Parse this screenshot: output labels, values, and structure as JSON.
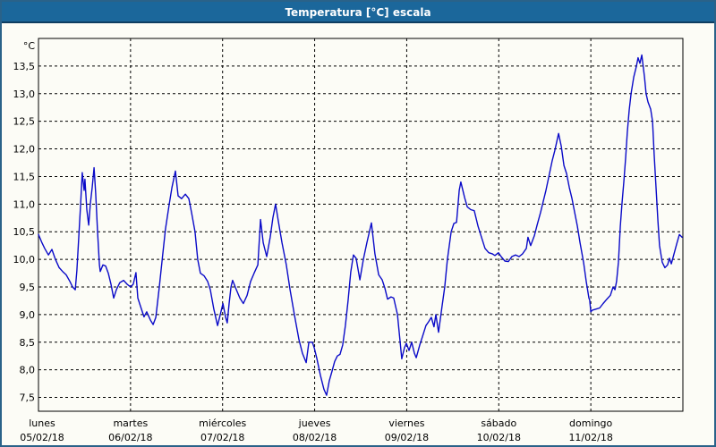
{
  "window": {
    "title": "Temperatura [°C] escala"
  },
  "colors": {
    "titlebar_bg": "#1b679b",
    "titlebar_text": "#ffffff",
    "titlebar_border": "#0e3d60",
    "frame_border": "#2a6289",
    "background": "#fcfcf6",
    "line": "#0a0ac8",
    "axis": "#000000",
    "grid": "#000000",
    "label_text": "#000000"
  },
  "chart_data": {
    "type": "line",
    "title": "Temperatura [°C] escala",
    "y_unit_label": "°C",
    "ylabel": "Temperatura [°C]",
    "xlabel": "",
    "grid": "dashed",
    "legend": "none",
    "ylim": [
      7.25,
      14.0
    ],
    "xlim_hours": [
      0,
      168
    ],
    "y_ticks": [
      {
        "label": "13,5",
        "value": 13.5
      },
      {
        "label": "13,0",
        "value": 13.0
      },
      {
        "label": "12,5",
        "value": 12.5
      },
      {
        "label": "12,0",
        "value": 12.0
      },
      {
        "label": "11,5",
        "value": 11.5
      },
      {
        "label": "11,0",
        "value": 11.0
      },
      {
        "label": "10,5",
        "value": 10.5
      },
      {
        "label": "10,0",
        "value": 10.0
      },
      {
        "label": "9,5",
        "value": 9.5
      },
      {
        "label": "9,0",
        "value": 9.0
      },
      {
        "label": "8,5",
        "value": 8.5
      },
      {
        "label": "8,0",
        "value": 8.0
      },
      {
        "label": "7,5",
        "value": 7.5
      }
    ],
    "days": [
      {
        "name": "lunes",
        "date": "05/02/18"
      },
      {
        "name": "martes",
        "date": "06/02/18"
      },
      {
        "name": "miércoles",
        "date": "07/02/18"
      },
      {
        "name": "jueves",
        "date": "08/02/18"
      },
      {
        "name": "viernes",
        "date": "09/02/18"
      },
      {
        "name": "sábado",
        "date": "10/02/18"
      },
      {
        "name": "domingo",
        "date": "11/02/18"
      }
    ],
    "series": [
      {
        "name": "Temperatura",
        "color": "#0a0ac8",
        "points": [
          [
            0,
            10.45
          ],
          [
            0.9,
            10.3
          ],
          [
            1.6,
            10.2
          ],
          [
            2.6,
            10.08
          ],
          [
            3.5,
            10.18
          ],
          [
            4.4,
            10.0
          ],
          [
            5.4,
            9.85
          ],
          [
            6.3,
            9.78
          ],
          [
            7.2,
            9.72
          ],
          [
            8.2,
            9.6
          ],
          [
            8.9,
            9.5
          ],
          [
            9.6,
            9.45
          ],
          [
            10,
            9.8
          ],
          [
            10.5,
            10.4
          ],
          [
            11,
            11.0
          ],
          [
            11.4,
            11.57
          ],
          [
            11.9,
            11.25
          ],
          [
            12.1,
            11.45
          ],
          [
            12.6,
            10.9
          ],
          [
            13.1,
            10.62
          ],
          [
            13.5,
            11.0
          ],
          [
            14,
            11.3
          ],
          [
            14.5,
            11.66
          ],
          [
            14.9,
            11.2
          ],
          [
            15.4,
            10.5
          ],
          [
            15.9,
            9.9
          ],
          [
            16.1,
            9.78
          ],
          [
            16.8,
            9.9
          ],
          [
            17.5,
            9.88
          ],
          [
            18.2,
            9.75
          ],
          [
            18.9,
            9.55
          ],
          [
            19.6,
            9.3
          ],
          [
            20.3,
            9.45
          ],
          [
            21.2,
            9.58
          ],
          [
            22.2,
            9.62
          ],
          [
            23.1,
            9.55
          ],
          [
            24,
            9.5
          ],
          [
            24.7,
            9.55
          ],
          [
            25.4,
            9.76
          ],
          [
            25.9,
            9.3
          ],
          [
            26.6,
            9.15
          ],
          [
            27.5,
            8.96
          ],
          [
            28.2,
            9.05
          ],
          [
            29.2,
            8.9
          ],
          [
            29.9,
            8.82
          ],
          [
            30.6,
            8.95
          ],
          [
            31.5,
            9.5
          ],
          [
            32.4,
            10.1
          ],
          [
            33.1,
            10.55
          ],
          [
            34.1,
            11.0
          ],
          [
            34.8,
            11.3
          ],
          [
            35.7,
            11.6
          ],
          [
            36.4,
            11.15
          ],
          [
            37.3,
            11.1
          ],
          [
            38.3,
            11.18
          ],
          [
            39.2,
            11.1
          ],
          [
            39.9,
            10.85
          ],
          [
            40.8,
            10.5
          ],
          [
            41.5,
            10.0
          ],
          [
            42.2,
            9.75
          ],
          [
            43.2,
            9.7
          ],
          [
            44.1,
            9.6
          ],
          [
            44.8,
            9.45
          ],
          [
            45.7,
            9.1
          ],
          [
            46.7,
            8.8
          ],
          [
            47.4,
            9.0
          ],
          [
            48.1,
            9.2
          ],
          [
            48.8,
            8.95
          ],
          [
            49.2,
            8.85
          ],
          [
            49.7,
            9.2
          ],
          [
            50.2,
            9.5
          ],
          [
            50.6,
            9.62
          ],
          [
            51.6,
            9.45
          ],
          [
            52.5,
            9.3
          ],
          [
            53.4,
            9.2
          ],
          [
            54.4,
            9.35
          ],
          [
            55.3,
            9.6
          ],
          [
            56.2,
            9.75
          ],
          [
            57.2,
            9.9
          ],
          [
            57.9,
            10.72
          ],
          [
            58.6,
            10.3
          ],
          [
            59.5,
            10.05
          ],
          [
            60.4,
            10.4
          ],
          [
            61.1,
            10.75
          ],
          [
            61.8,
            11.0
          ],
          [
            62.5,
            10.7
          ],
          [
            63.5,
            10.3
          ],
          [
            64.6,
            9.9
          ],
          [
            65.6,
            9.45
          ],
          [
            66.7,
            9.0
          ],
          [
            67.9,
            8.55
          ],
          [
            68.8,
            8.3
          ],
          [
            69.8,
            8.13
          ],
          [
            70.5,
            8.5
          ],
          [
            71.4,
            8.5
          ],
          [
            71.9,
            8.4
          ],
          [
            72.6,
            8.2
          ],
          [
            73.5,
            7.9
          ],
          [
            74.4,
            7.65
          ],
          [
            75.1,
            7.54
          ],
          [
            75.8,
            7.8
          ],
          [
            76.5,
            7.97
          ],
          [
            77.2,
            8.15
          ],
          [
            77.9,
            8.25
          ],
          [
            78.6,
            8.28
          ],
          [
            79.3,
            8.45
          ],
          [
            80,
            8.8
          ],
          [
            80.7,
            9.25
          ],
          [
            81.4,
            9.77
          ],
          [
            82.1,
            10.08
          ],
          [
            82.8,
            10.02
          ],
          [
            83.8,
            9.63
          ],
          [
            84.7,
            10.0
          ],
          [
            85.6,
            10.3
          ],
          [
            86.8,
            10.66
          ],
          [
            87.7,
            10.1
          ],
          [
            88.7,
            9.72
          ],
          [
            89.6,
            9.63
          ],
          [
            90.3,
            9.48
          ],
          [
            91,
            9.28
          ],
          [
            91.9,
            9.32
          ],
          [
            92.6,
            9.3
          ],
          [
            93.6,
            9.0
          ],
          [
            94.3,
            8.5
          ],
          [
            94.7,
            8.2
          ],
          [
            95.4,
            8.4
          ],
          [
            95.9,
            8.48
          ],
          [
            96.6,
            8.35
          ],
          [
            97.3,
            8.5
          ],
          [
            98,
            8.3
          ],
          [
            98.5,
            8.22
          ],
          [
            99.4,
            8.45
          ],
          [
            100.1,
            8.6
          ],
          [
            101,
            8.8
          ],
          [
            101.7,
            8.87
          ],
          [
            102.4,
            8.95
          ],
          [
            103.1,
            8.78
          ],
          [
            103.6,
            9.0
          ],
          [
            104.3,
            8.68
          ],
          [
            105.2,
            9.15
          ],
          [
            105.9,
            9.5
          ],
          [
            106.6,
            10.0
          ],
          [
            107.6,
            10.5
          ],
          [
            108.3,
            10.65
          ],
          [
            109,
            10.67
          ],
          [
            109.7,
            11.25
          ],
          [
            110.1,
            11.4
          ],
          [
            111.1,
            11.12
          ],
          [
            111.8,
            10.95
          ],
          [
            112.7,
            10.9
          ],
          [
            113.6,
            10.88
          ],
          [
            114.6,
            10.6
          ],
          [
            115.5,
            10.4
          ],
          [
            116.4,
            10.2
          ],
          [
            117.4,
            10.12
          ],
          [
            118.3,
            10.1
          ],
          [
            119,
            10.07
          ],
          [
            119.9,
            10.12
          ],
          [
            120.6,
            10.05
          ],
          [
            121.6,
            9.97
          ],
          [
            122.5,
            9.96
          ],
          [
            123.4,
            10.05
          ],
          [
            124.4,
            10.08
          ],
          [
            125.3,
            10.05
          ],
          [
            126.2,
            10.1
          ],
          [
            127.2,
            10.2
          ],
          [
            127.6,
            10.4
          ],
          [
            128.3,
            10.25
          ],
          [
            129.3,
            10.43
          ],
          [
            130,
            10.62
          ],
          [
            130.9,
            10.85
          ],
          [
            131.6,
            11.05
          ],
          [
            132.3,
            11.25
          ],
          [
            133.2,
            11.55
          ],
          [
            133.9,
            11.78
          ],
          [
            134.6,
            11.97
          ],
          [
            135.6,
            12.28
          ],
          [
            136.3,
            12.05
          ],
          [
            137,
            11.7
          ],
          [
            137.7,
            11.55
          ],
          [
            138.4,
            11.3
          ],
          [
            139.1,
            11.1
          ],
          [
            139.8,
            10.85
          ],
          [
            140.5,
            10.6
          ],
          [
            141.2,
            10.3
          ],
          [
            142.1,
            9.95
          ],
          [
            142.8,
            9.6
          ],
          [
            143.5,
            9.3
          ],
          [
            143.7,
            9.26
          ],
          [
            144,
            9.05
          ],
          [
            144.4,
            9.08
          ],
          [
            145.4,
            9.1
          ],
          [
            146.3,
            9.12
          ],
          [
            147.2,
            9.2
          ],
          [
            148.2,
            9.28
          ],
          [
            149.1,
            9.35
          ],
          [
            149.8,
            9.5
          ],
          [
            150.3,
            9.45
          ],
          [
            150.7,
            9.6
          ],
          [
            151.2,
            9.95
          ],
          [
            151.7,
            10.6
          ],
          [
            152.1,
            11.0
          ],
          [
            152.6,
            11.4
          ],
          [
            153.1,
            11.85
          ],
          [
            153.5,
            12.3
          ],
          [
            154,
            12.7
          ],
          [
            154.5,
            13.0
          ],
          [
            155.2,
            13.3
          ],
          [
            155.9,
            13.5
          ],
          [
            156.3,
            13.65
          ],
          [
            156.8,
            13.55
          ],
          [
            157.3,
            13.7
          ],
          [
            158,
            13.3
          ],
          [
            158.4,
            13.0
          ],
          [
            158.9,
            12.85
          ],
          [
            159.6,
            12.72
          ],
          [
            160.1,
            12.5
          ],
          [
            160.5,
            11.9
          ],
          [
            161,
            11.3
          ],
          [
            161.5,
            10.7
          ],
          [
            161.9,
            10.25
          ],
          [
            162.6,
            9.95
          ],
          [
            163.3,
            9.85
          ],
          [
            164,
            9.9
          ],
          [
            164.5,
            10.02
          ],
          [
            165,
            9.92
          ],
          [
            165.7,
            10.1
          ],
          [
            166.4,
            10.28
          ],
          [
            167.1,
            10.45
          ],
          [
            167.8,
            10.4
          ]
        ]
      }
    ]
  }
}
